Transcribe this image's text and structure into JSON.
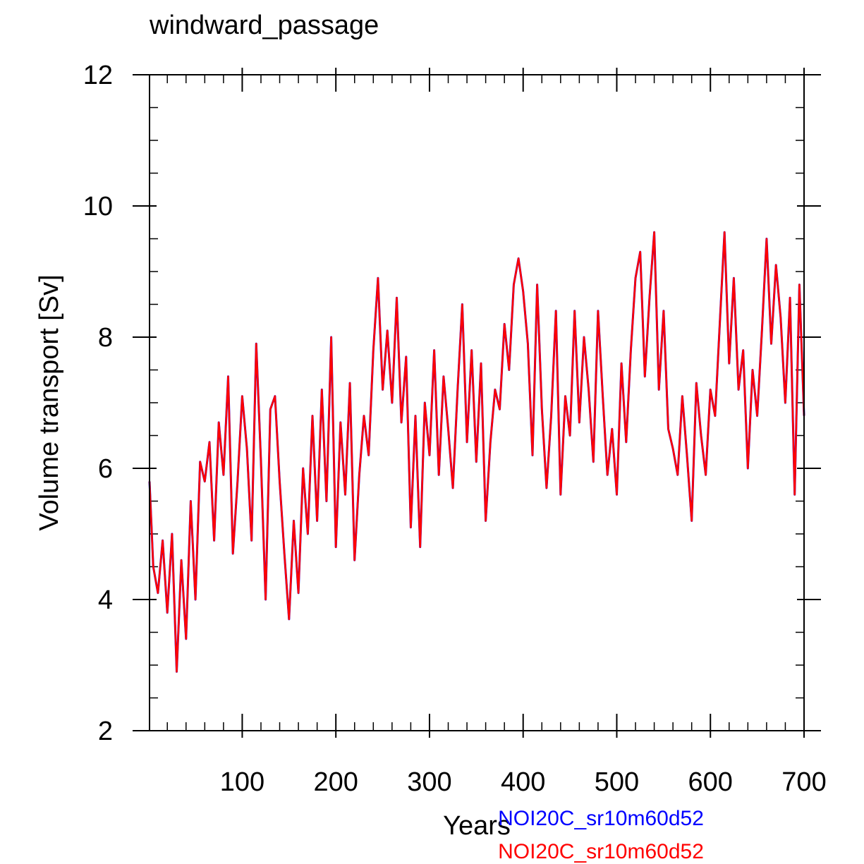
{
  "chart_data": {
    "type": "line",
    "title": "windward_passage",
    "xlabel": "Years",
    "ylabel": "Volume transport [Sv]",
    "xlim": [
      1,
      700
    ],
    "ylim": [
      2,
      12
    ],
    "x_ticks": [
      100,
      200,
      300,
      400,
      500,
      600,
      700
    ],
    "y_ticks": [
      2,
      4,
      6,
      8,
      10,
      12
    ],
    "x_tick_labels": [
      "100",
      "200",
      "300",
      "400",
      "500",
      "600",
      "700"
    ],
    "y_tick_labels": [
      "2",
      "4",
      "6",
      "8",
      "10",
      "12"
    ],
    "legend": [
      "NOI20C_sr10m60d52",
      "NOI20C_sr10m60d52"
    ],
    "series": [
      {
        "name": "NOI20C_sr10m60d52",
        "color": "#0000ff",
        "x": [
          1,
          5,
          10,
          15,
          20,
          25,
          30,
          35,
          40,
          45,
          50,
          55,
          60,
          65,
          70,
          75,
          80,
          85,
          90,
          95,
          100,
          105,
          110,
          115,
          120,
          125,
          130,
          135,
          140,
          145,
          150,
          155,
          160,
          165,
          170,
          175,
          180,
          185,
          190,
          195,
          200,
          205,
          210,
          215,
          220,
          225,
          230,
          235,
          240,
          245,
          250,
          255,
          260,
          265,
          270,
          275,
          280,
          285,
          290,
          295,
          300,
          305,
          310,
          315,
          320,
          325,
          330,
          335,
          340,
          345,
          350,
          355,
          360,
          365,
          370,
          375,
          380,
          385,
          390,
          395,
          400,
          405,
          410,
          415,
          420,
          425,
          430,
          435,
          440,
          445,
          450,
          455,
          460,
          465,
          470,
          475,
          480,
          485,
          490,
          495,
          500,
          505,
          510,
          515,
          520,
          525,
          530,
          535,
          540,
          545,
          550,
          555,
          560,
          565,
          570,
          575,
          580,
          585,
          590,
          595,
          600,
          605,
          610,
          615,
          620,
          625,
          630,
          635,
          640,
          645,
          650,
          655,
          660,
          665,
          670,
          675,
          680,
          685,
          690,
          695,
          700
        ],
        "values": [
          5.8,
          4.5,
          4.1,
          4.9,
          3.8,
          5.0,
          2.9,
          4.6,
          3.4,
          5.5,
          4.0,
          6.1,
          5.8,
          6.4,
          4.9,
          6.7,
          5.9,
          7.4,
          4.7,
          5.8,
          7.1,
          6.3,
          4.9,
          7.9,
          6.1,
          4.0,
          6.9,
          7.1,
          5.8,
          4.7,
          3.7,
          5.2,
          4.1,
          6.0,
          5.0,
          6.8,
          5.2,
          7.2,
          5.5,
          8.0,
          4.8,
          6.7,
          5.6,
          7.3,
          4.6,
          5.9,
          6.8,
          6.2,
          7.8,
          8.9,
          7.2,
          8.1,
          7.0,
          8.6,
          6.7,
          7.7,
          5.1,
          6.8,
          4.8,
          7.0,
          6.2,
          7.8,
          5.9,
          7.4,
          6.6,
          5.7,
          7.2,
          8.5,
          6.4,
          7.8,
          6.1,
          7.6,
          5.2,
          6.4,
          7.2,
          6.9,
          8.2,
          7.5,
          8.8,
          9.2,
          8.7,
          7.9,
          6.2,
          8.8,
          6.9,
          5.7,
          6.8,
          8.4,
          5.6,
          7.1,
          6.5,
          8.4,
          6.7,
          8.0,
          7.2,
          6.1,
          8.4,
          7.1,
          5.9,
          6.6,
          5.6,
          7.6,
          6.4,
          7.8,
          8.9,
          9.3,
          7.4,
          8.6,
          9.6,
          7.2,
          8.4,
          6.6,
          6.3,
          5.9,
          7.1,
          6.2,
          5.2,
          7.3,
          6.5,
          5.9,
          7.2,
          6.8,
          8.2,
          9.6,
          7.6,
          8.9,
          7.2,
          7.8,
          6.0,
          7.5,
          6.8,
          8.1,
          9.5,
          7.9,
          9.1,
          8.3,
          7.0,
          8.6,
          5.6,
          8.8,
          6.8
        ]
      },
      {
        "name": "NOI20C_sr10m60d52",
        "color": "#ff0000",
        "x": [
          1,
          5,
          10,
          15,
          20,
          25,
          30,
          35,
          40,
          45,
          50,
          55,
          60,
          65,
          70,
          75,
          80,
          85,
          90,
          95,
          100,
          105,
          110,
          115,
          120,
          125,
          130,
          135,
          140,
          145,
          150,
          155,
          160,
          165,
          170,
          175,
          180,
          185,
          190,
          195,
          200,
          205,
          210,
          215,
          220,
          225,
          230,
          235,
          240,
          245,
          250,
          255,
          260,
          265,
          270,
          275,
          280,
          285,
          290,
          295,
          300,
          305,
          310,
          315,
          320,
          325,
          330,
          335,
          340,
          345,
          350,
          355,
          360,
          365,
          370,
          375,
          380,
          385,
          390,
          395,
          400,
          405,
          410,
          415,
          420,
          425,
          430,
          435,
          440,
          445,
          450,
          455,
          460,
          465,
          470,
          475,
          480,
          485,
          490,
          495,
          500,
          505,
          510,
          515,
          520,
          525,
          530,
          535,
          540,
          545,
          550,
          555,
          560,
          565,
          570,
          575,
          580,
          585,
          590,
          595,
          600,
          605,
          610,
          615,
          620,
          625,
          630,
          635,
          640,
          645,
          650,
          655,
          660,
          665,
          670,
          675,
          680,
          685,
          690,
          695,
          700
        ],
        "values": [
          5.8,
          4.5,
          4.1,
          4.9,
          3.8,
          5.0,
          2.9,
          4.6,
          3.4,
          5.5,
          4.0,
          6.1,
          5.8,
          6.4,
          4.9,
          6.7,
          5.9,
          7.4,
          4.7,
          5.8,
          7.1,
          6.3,
          4.9,
          7.9,
          6.1,
          4.0,
          6.9,
          7.1,
          5.8,
          4.7,
          3.7,
          5.2,
          4.1,
          6.0,
          5.0,
          6.8,
          5.2,
          7.2,
          5.5,
          8.0,
          4.8,
          6.7,
          5.6,
          7.3,
          4.6,
          5.9,
          6.8,
          6.2,
          7.8,
          8.9,
          7.2,
          8.1,
          7.0,
          8.6,
          6.7,
          7.7,
          5.1,
          6.8,
          4.8,
          7.0,
          6.2,
          7.8,
          5.9,
          7.4,
          6.6,
          5.7,
          7.2,
          8.5,
          6.4,
          7.8,
          6.1,
          7.6,
          5.2,
          6.4,
          7.2,
          6.9,
          8.2,
          7.5,
          8.8,
          9.2,
          8.7,
          7.9,
          6.2,
          8.8,
          6.9,
          5.7,
          6.8,
          8.4,
          5.6,
          7.1,
          6.5,
          8.4,
          6.7,
          8.0,
          7.2,
          6.1,
          8.4,
          7.1,
          5.9,
          6.6,
          5.6,
          7.6,
          6.4,
          7.8,
          8.9,
          9.3,
          7.4,
          8.6,
          9.6,
          7.2,
          8.4,
          6.6,
          6.3,
          5.9,
          7.1,
          6.2,
          5.2,
          7.3,
          6.5,
          5.9,
          7.2,
          6.8,
          8.2,
          9.6,
          7.6,
          8.9,
          7.2,
          7.8,
          6.0,
          7.5,
          6.8,
          8.1,
          9.5,
          7.9,
          9.1,
          8.3,
          7.0,
          8.6,
          5.6,
          8.8,
          6.8
        ]
      }
    ]
  }
}
